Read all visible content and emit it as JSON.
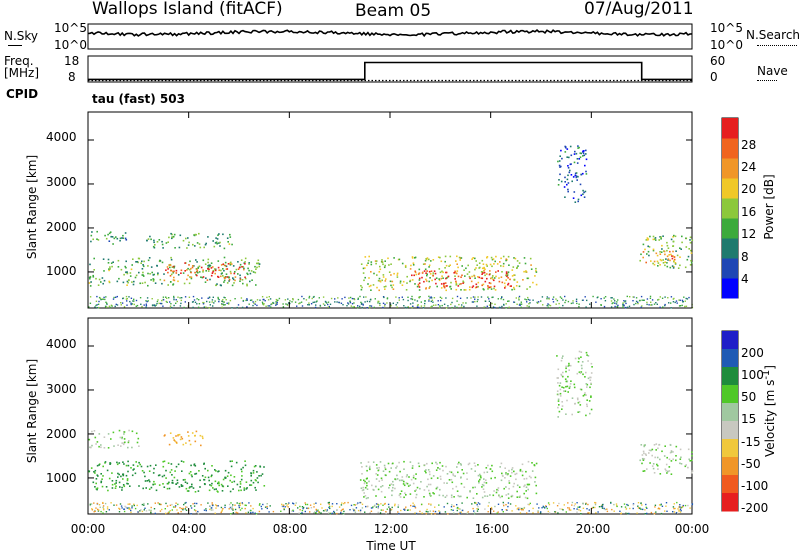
{
  "header": {
    "station": "Wallops Island (fitACF)",
    "beam": "Beam 05",
    "date": "07/Aug/2011"
  },
  "nsky_panel": {
    "left_label": "N.Sky",
    "tick_top": "10^5",
    "tick_bottom": "10^0",
    "right_tick_top": "10^5",
    "right_tick_bottom": "10^0",
    "right_label": "N.Search"
  },
  "freq_panel": {
    "left_label_line1": "Freq.",
    "left_label_line2": "[MHz]",
    "tick_top": "18",
    "tick_bottom": "8",
    "right_tick_top": "60",
    "right_tick_bottom": "0",
    "right_label": "Nave"
  },
  "cpid": {
    "label": "CPID",
    "program": "tau (fast) 503"
  },
  "x_axis": {
    "label": "Time UT",
    "ticks": [
      "00:00",
      "04:00",
      "08:00",
      "12:00",
      "16:00",
      "20:00",
      "00:00"
    ]
  },
  "power_colorbar": {
    "label": "Power [dB]",
    "ticks": [
      "4",
      "8",
      "12",
      "16",
      "20",
      "24",
      "28"
    ],
    "colors": [
      "#0000ff",
      "#1e46b4",
      "#1e7a6e",
      "#3caa3c",
      "#8cc83c",
      "#f0c828",
      "#f09628",
      "#f0641e",
      "#e61e1e"
    ]
  },
  "velocity_colorbar": {
    "label": "Velocity [m s^-1]",
    "ticks": [
      "200",
      "100",
      "50",
      "15",
      "-15",
      "-50",
      "-100",
      "-200"
    ],
    "colors": [
      "#1e1ec8",
      "#1e5ab4",
      "#1e8c3c",
      "#50c828",
      "#a0c8a0",
      "#c8c8c0",
      "#f0c83c",
      "#f09628",
      "#f05a1e",
      "#e61e1e"
    ]
  },
  "chart_data": [
    {
      "type": "line",
      "title": "N.Sky / N.Search",
      "x": [
        "00:00",
        "04:00",
        "08:00",
        "12:00",
        "16:00",
        "20:00",
        "00:00"
      ],
      "series": [
        {
          "name": "N.Sky",
          "values_log10": [
            3.5,
            3.3,
            3.2,
            3.1,
            3.4,
            3.3,
            3.6
          ]
        }
      ],
      "ylim_log10": [
        0,
        5
      ]
    },
    {
      "type": "line",
      "title": "Freq. / Nave",
      "x_hours": [
        0,
        11,
        11,
        22,
        22,
        24
      ],
      "series": [
        {
          "name": "Freq. [MHz]",
          "values": [
            9,
            9,
            15.5,
            15.5,
            9,
            9
          ]
        },
        {
          "name": "Nave",
          "values": [
            0,
            0,
            0,
            0,
            0,
            0
          ]
        }
      ],
      "ylim_freq": [
        8,
        18
      ],
      "ylim_nave": [
        0,
        60
      ]
    },
    {
      "type": "heatmap",
      "quantity": "Power [dB]",
      "xlabel": "Time UT",
      "ylabel": "Slant Range [km]",
      "xlim_hours": [
        0,
        24
      ],
      "ylim_km": [
        180,
        4500
      ],
      "yticks": [
        1000,
        2000,
        3000,
        4000
      ],
      "color_range": [
        0,
        30
      ],
      "regions": [
        {
          "t0": 0.0,
          "t1": 6.8,
          "r0": 700,
          "r1": 1350,
          "level": 12
        },
        {
          "t0": 3.0,
          "t1": 6.3,
          "r0": 820,
          "r1": 1220,
          "level": 26
        },
        {
          "t0": 0.0,
          "t1": 1.6,
          "r0": 1650,
          "r1": 1950,
          "level": 10
        },
        {
          "t0": 2.3,
          "t1": 5.8,
          "r0": 1550,
          "r1": 1900,
          "level": 12
        },
        {
          "t0": 10.8,
          "t1": 17.8,
          "r0": 600,
          "r1": 1380,
          "level": 16
        },
        {
          "t0": 12.8,
          "t1": 16.8,
          "r0": 650,
          "r1": 1050,
          "level": 27
        },
        {
          "t0": 18.6,
          "t1": 19.8,
          "r0": 2600,
          "r1": 3900,
          "level": 6
        },
        {
          "t0": 21.9,
          "t1": 24.0,
          "r0": 1100,
          "r1": 1850,
          "level": 14
        },
        {
          "t0": 22.0,
          "t1": 23.6,
          "r0": 1200,
          "r1": 1500,
          "level": 22
        }
      ]
    },
    {
      "type": "heatmap",
      "quantity": "Velocity [m s^-1]",
      "xlabel": "Time UT",
      "ylabel": "Slant Range [km]",
      "xlim_hours": [
        0,
        24
      ],
      "ylim_km": [
        180,
        4500
      ],
      "yticks": [
        1000,
        2000,
        3000,
        4000
      ],
      "color_range": [
        -200,
        200
      ],
      "regions": [
        {
          "t0": 0.0,
          "t1": 7.0,
          "r0": 700,
          "r1": 1400,
          "velocity": 40
        },
        {
          "t0": 0.0,
          "t1": 2.0,
          "r0": 1700,
          "r1": 2100,
          "velocity": 0
        },
        {
          "t0": 3.0,
          "t1": 4.6,
          "r0": 1750,
          "r1": 2100,
          "velocity": -80
        },
        {
          "t0": 10.8,
          "t1": 17.8,
          "r0": 550,
          "r1": 1400,
          "velocity": 0
        },
        {
          "t0": 18.6,
          "t1": 20.0,
          "r0": 2400,
          "r1": 3900,
          "velocity": 0
        },
        {
          "t0": 21.9,
          "t1": 24.0,
          "r0": 1100,
          "r1": 1800,
          "velocity": 0
        }
      ]
    }
  ]
}
